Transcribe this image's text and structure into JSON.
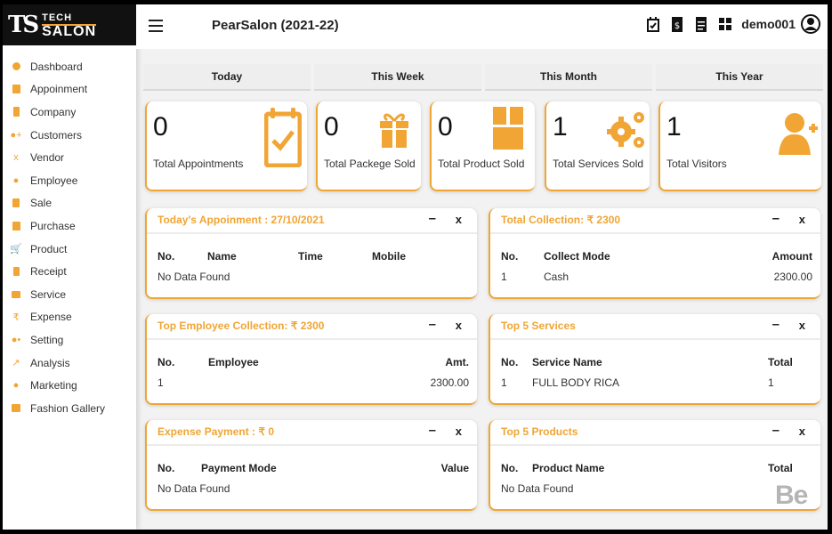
{
  "brand": {
    "mark": "TS",
    "line1": "TECH",
    "line2": "SALON"
  },
  "sidebar": {
    "items": [
      {
        "label": "Dashboard",
        "icon": "dashboard-icon"
      },
      {
        "label": "Appoinment",
        "icon": "calendar-icon"
      },
      {
        "label": "Company",
        "icon": "building-icon"
      },
      {
        "label": "Customers",
        "icon": "user-plus-icon"
      },
      {
        "label": "Vendor",
        "icon": "vendor-icon"
      },
      {
        "label": "Employee",
        "icon": "user-icon"
      },
      {
        "label": "Sale",
        "icon": "sale-icon"
      },
      {
        "label": "Purchase",
        "icon": "purchase-icon"
      },
      {
        "label": "Product",
        "icon": "cart-icon"
      },
      {
        "label": "Receipt",
        "icon": "receipt-icon"
      },
      {
        "label": "Service",
        "icon": "service-icon"
      },
      {
        "label": "Expense",
        "icon": "rupee-icon"
      },
      {
        "label": "Setting",
        "icon": "user-gear-icon"
      },
      {
        "label": "Analysis",
        "icon": "chart-icon"
      },
      {
        "label": "Marketing",
        "icon": "user-icon"
      },
      {
        "label": "Fashion Gallery",
        "icon": "image-icon"
      }
    ]
  },
  "header": {
    "title": "PearSalon (2021-22)",
    "user": "demo001"
  },
  "tabs": [
    "Today",
    "This Week",
    "This Month",
    "This Year"
  ],
  "stats": [
    {
      "value": "0",
      "label": "Total Appointments",
      "icon": "calendar-check-icon"
    },
    {
      "value": "0",
      "label": "Total Packege Sold",
      "icon": "gift-icon"
    },
    {
      "value": "0",
      "label": "Total Product Sold",
      "icon": "box-icon"
    },
    {
      "value": "1",
      "label": "Total Services Sold",
      "icon": "gears-icon"
    },
    {
      "value": "1",
      "label": "Total Visitors",
      "icon": "user-plus-icon"
    }
  ],
  "panels": {
    "appointments": {
      "title": "Today's Appoinment : 27/10/2021",
      "headers": [
        "No.",
        "Name",
        "Time",
        "Mobile"
      ],
      "empty": "No Data Found"
    },
    "collection": {
      "title": "Total Collection: ₹ 2300",
      "headers": [
        "No.",
        "Collect Mode",
        "Amount"
      ],
      "row": [
        "1",
        "Cash",
        "2300.00"
      ]
    },
    "employee": {
      "title": "Top Employee Collection: ₹ 2300",
      "headers": [
        "No.",
        "Employee",
        "Amt."
      ],
      "row": [
        "1",
        "",
        "2300.00"
      ]
    },
    "services": {
      "title": "Top 5 Services",
      "headers": [
        "No.",
        "Service Name",
        "Total"
      ],
      "row": [
        "1",
        "FULL BODY RICA",
        "1"
      ]
    },
    "expense": {
      "title": "Expense Payment : ₹ 0",
      "headers": [
        "No.",
        "Payment Mode",
        "Value"
      ],
      "empty": "No Data Found"
    },
    "products": {
      "title": "Top 5 Products",
      "headers": [
        "No.",
        "Product Name",
        "Total"
      ],
      "empty": "No Data Found"
    }
  },
  "controls": {
    "minimize": "–",
    "close": "x"
  },
  "watermark": "Be",
  "colors": {
    "accent": "#f0a534",
    "sidebar_bg": "#ffffff",
    "brand_bg": "#111111"
  }
}
